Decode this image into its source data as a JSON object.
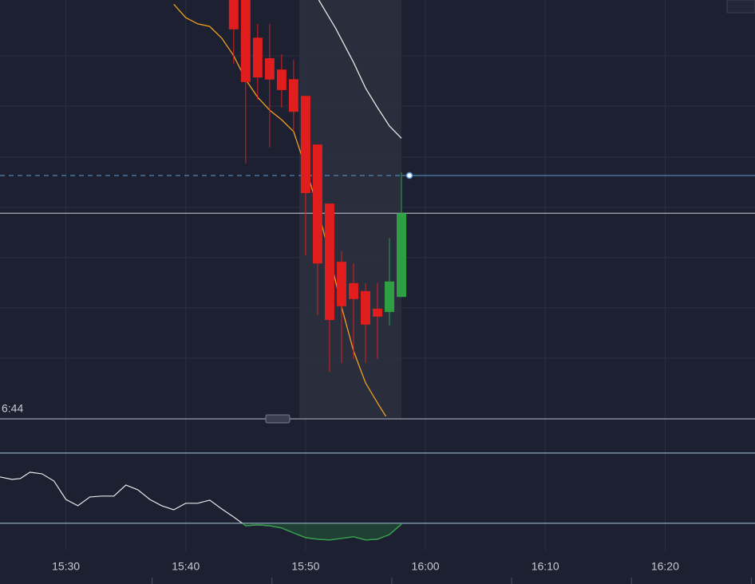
{
  "chart_data": [
    {
      "type": "candlestick",
      "xlim": [
        24.5,
        87.5
      ],
      "ylim": [
        0,
        100
      ],
      "x": [
        44,
        45,
        46,
        47,
        48,
        49,
        50,
        51,
        52,
        53,
        54,
        55,
        56,
        57,
        58
      ],
      "open": [
        100,
        100,
        91.0,
        86.1,
        83.4,
        81.1,
        77.1,
        65.5,
        51.4,
        37.5,
        32.4,
        30.5,
        26.3,
        25.5,
        29.1
      ],
      "high": [
        100,
        100,
        94.3,
        94.3,
        87.0,
        85.7,
        77.1,
        65.5,
        51.4,
        40.0,
        37.1,
        32.4,
        32.4,
        43.2,
        58.9
      ],
      "low": [
        84.8,
        61.0,
        76.2,
        64.8,
        74.3,
        68.6,
        39.0,
        24.8,
        11.2,
        13.3,
        14.3,
        13.3,
        14.3,
        22.3,
        29.1
      ],
      "close": [
        93.0,
        80.4,
        81.5,
        81.0,
        78.5,
        73.3,
        53.9,
        37.1,
        23.6,
        26.9,
        28.6,
        22.5,
        24.4,
        32.8,
        49.1
      ],
      "up_color": "#2ea043",
      "down_color": "#e01e1e",
      "overlays": [
        {
          "color": "#f0a020",
          "x": [
            39,
            40,
            41,
            42,
            43,
            44,
            45,
            46,
            47,
            48,
            49,
            50,
            51,
            52,
            53,
            54,
            55,
            56,
            56.7
          ],
          "values": [
            99.0,
            95.8,
            94.3,
            93.7,
            90.9,
            86.7,
            81.0,
            76.8,
            73.7,
            71.4,
            68.6,
            60.0,
            50.5,
            39.0,
            26.7,
            16.2,
            8.6,
            3.8,
            0.6
          ]
        },
        {
          "color": "#e8e8e8",
          "x": [
            51.1,
            52.5,
            54,
            55,
            56,
            57,
            58
          ],
          "values": [
            100,
            93.3,
            85.1,
            79.0,
            74.3,
            69.9,
            67.0
          ]
        }
      ],
      "ygrid": [
        86.7,
        74.7,
        62.5,
        50.5,
        38.5,
        26.5,
        14.5
      ],
      "price_line": 58.1,
      "price_line_color": "#5b9bd5",
      "countdown_label": "6:44"
    },
    {
      "type": "line",
      "xlim": [
        24.5,
        87.5
      ],
      "ylim": [
        14.5,
        82.7
      ],
      "x": [
        24.5,
        25.5,
        26.2,
        27,
        28,
        29,
        30,
        31,
        32,
        33,
        34,
        35,
        36,
        37,
        38,
        39,
        40,
        41,
        42,
        43,
        44,
        45,
        46,
        47,
        48,
        49,
        50,
        51,
        52,
        53,
        54,
        55,
        56,
        57,
        58
      ],
      "values": [
        56.4,
        55.0,
        55.5,
        59.1,
        58.2,
        54.1,
        43.6,
        40.0,
        45.0,
        45.5,
        45.5,
        51.8,
        49.1,
        43.6,
        40.0,
        37.7,
        41.4,
        41.4,
        43.2,
        38.2,
        33.6,
        28.6,
        29.1,
        28.6,
        27.3,
        24.5,
        21.8,
        20.9,
        20.5,
        21.4,
        22.3,
        20.5,
        20.9,
        23.6,
        29.5
      ],
      "color": "#e8e8e8",
      "low_color": "#2ea043",
      "levels": [
        70,
        30
      ],
      "xticks": [
        {
          "value": 30,
          "label": "15:30"
        },
        {
          "value": 40,
          "label": "15:40"
        },
        {
          "value": 50,
          "label": "15:50"
        },
        {
          "value": 60,
          "label": "16:00"
        },
        {
          "value": 70,
          "label": "16:10"
        },
        {
          "value": 80,
          "label": "16:20"
        }
      ],
      "grid": true
    }
  ]
}
